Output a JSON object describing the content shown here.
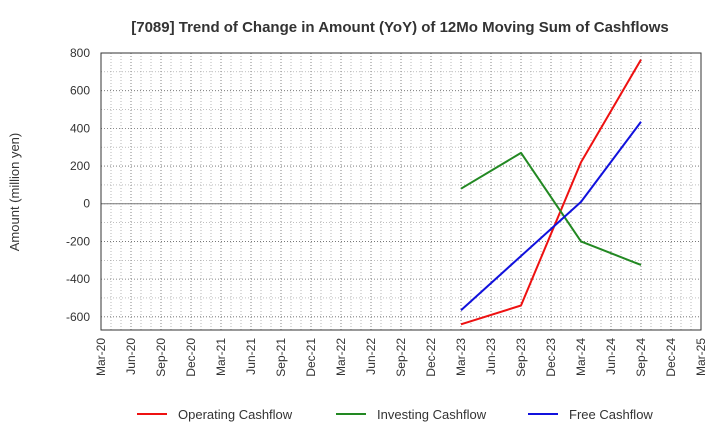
{
  "chart_data": {
    "type": "line",
    "title": "[7089]  Trend of Change in Amount (YoY) of 12Mo Moving Sum of Cashflows",
    "xlabel": "",
    "ylabel": "Amount (million yen)",
    "ylim": [
      -670,
      800
    ],
    "yticks": [
      800,
      600,
      400,
      200,
      0,
      -200,
      -400,
      -600
    ],
    "categories": [
      "Mar-20",
      "Jun-20",
      "Sep-20",
      "Dec-20",
      "Mar-21",
      "Jun-21",
      "Sep-21",
      "Dec-21",
      "Mar-22",
      "Jun-22",
      "Sep-22",
      "Dec-22",
      "Mar-23",
      "Jun-23",
      "Sep-23",
      "Dec-23",
      "Mar-24",
      "Jun-24",
      "Sep-24",
      "Dec-24",
      "Mar-25"
    ],
    "grid": true,
    "legend_position": "bottom",
    "series": [
      {
        "name": "Operating Cashflow",
        "color": "#ee1111",
        "points": [
          [
            "Mar-23",
            -640
          ],
          [
            "Sep-23",
            -540
          ],
          [
            "Mar-24",
            220
          ],
          [
            "Sep-24",
            765
          ]
        ]
      },
      {
        "name": "Investing Cashflow",
        "color": "#228822",
        "points": [
          [
            "Mar-23",
            80
          ],
          [
            "Sep-23",
            270
          ],
          [
            "Mar-24",
            -200
          ],
          [
            "Sep-24",
            -325
          ]
        ]
      },
      {
        "name": "Free Cashflow",
        "color": "#1111dd",
        "points": [
          [
            "Mar-23",
            -565
          ],
          [
            "Mar-24",
            10
          ],
          [
            "Sep-24",
            435
          ]
        ]
      }
    ]
  }
}
